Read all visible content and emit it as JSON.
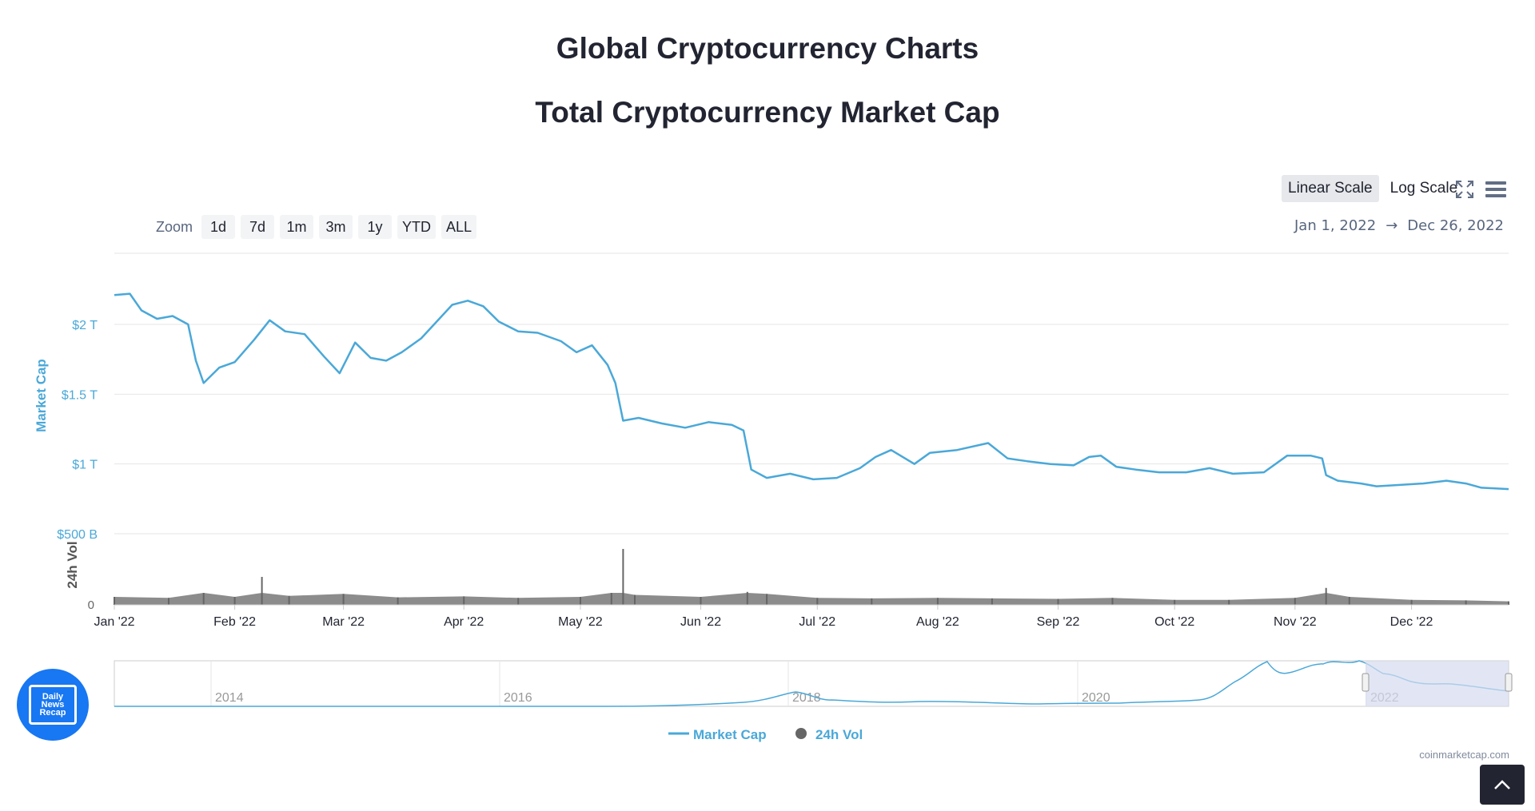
{
  "page": {
    "title": "Global Cryptocurrency Charts",
    "section_title": "Total Cryptocurrency Market Cap",
    "credit": "coinmarketcap.com"
  },
  "controls": {
    "scale_options": [
      "Linear Scale",
      "Log Scale"
    ],
    "active_scale": "Linear Scale",
    "zoom_label": "Zoom",
    "zoom_options": [
      "1d",
      "7d",
      "1m",
      "3m",
      "1y",
      "YTD",
      "ALL"
    ],
    "range_from": "Jan 1, 2022",
    "range_arrow": "→",
    "range_to": "Dec 26, 2022",
    "icons": [
      "fullscreen-icon",
      "menu-icon",
      "chevron-up-icon"
    ]
  },
  "logo": {
    "line1": "Daily",
    "line2": "News",
    "line3": "Recap",
    "color": "#1877f2"
  },
  "colors": {
    "market_cap": "#4aa8d8",
    "volume": "#666666",
    "grid": "#e6e6e6",
    "navigator_mask": "#d6dcef"
  },
  "chart_data": {
    "type": "line",
    "ylabel": "Market Cap",
    "volume_label": "24h Vol",
    "y_ticks": [
      "$2 T",
      "$1.5 T",
      "$1 T",
      "$500 B"
    ],
    "y_tick_values": [
      2000,
      1500,
      1000,
      500
    ],
    "volume_zero_tick": "0",
    "ylim": [
      500,
      2300
    ],
    "x_ticks": [
      "Jan '22",
      "Feb '22",
      "Mar '22",
      "Apr '22",
      "May '22",
      "Jun '22",
      "Jul '22",
      "Aug '22",
      "Sep '22",
      "Oct '22",
      "Nov '22",
      "Dec '22"
    ],
    "x_range": [
      "2022-01-01",
      "2022-12-26"
    ],
    "legend": [
      "Market Cap",
      "24h Vol"
    ],
    "legend_placement": "bottom-center",
    "series": [
      {
        "name": "Market Cap",
        "unit": "USD billions",
        "x": [
          "2022-01-01",
          "2022-01-05",
          "2022-01-08",
          "2022-01-12",
          "2022-01-16",
          "2022-01-20",
          "2022-01-22",
          "2022-01-24",
          "2022-01-28",
          "2022-02-01",
          "2022-02-06",
          "2022-02-10",
          "2022-02-14",
          "2022-02-19",
          "2022-02-24",
          "2022-02-28",
          "2022-03-04",
          "2022-03-08",
          "2022-03-12",
          "2022-03-16",
          "2022-03-21",
          "2022-03-25",
          "2022-03-29",
          "2022-04-02",
          "2022-04-06",
          "2022-04-10",
          "2022-04-15",
          "2022-04-20",
          "2022-04-26",
          "2022-04-30",
          "2022-05-04",
          "2022-05-08",
          "2022-05-10",
          "2022-05-12",
          "2022-05-16",
          "2022-05-22",
          "2022-05-28",
          "2022-06-03",
          "2022-06-09",
          "2022-06-12",
          "2022-06-14",
          "2022-06-18",
          "2022-06-24",
          "2022-06-30",
          "2022-07-06",
          "2022-07-12",
          "2022-07-16",
          "2022-07-20",
          "2022-07-26",
          "2022-07-30",
          "2022-08-06",
          "2022-08-14",
          "2022-08-19",
          "2022-08-24",
          "2022-08-30",
          "2022-09-05",
          "2022-09-09",
          "2022-09-12",
          "2022-09-16",
          "2022-09-21",
          "2022-09-27",
          "2022-10-04",
          "2022-10-10",
          "2022-10-16",
          "2022-10-24",
          "2022-10-30",
          "2022-11-05",
          "2022-11-08",
          "2022-11-09",
          "2022-11-12",
          "2022-11-18",
          "2022-11-22",
          "2022-11-28",
          "2022-12-04",
          "2022-12-10",
          "2022-12-15",
          "2022-12-19",
          "2022-12-26"
        ],
        "values": [
          2210,
          2220,
          2100,
          2040,
          2060,
          2000,
          1740,
          1580,
          1690,
          1730,
          1890,
          2030,
          1950,
          1930,
          1770,
          1650,
          1870,
          1760,
          1740,
          1800,
          1900,
          2020,
          2140,
          2170,
          2130,
          2020,
          1950,
          1940,
          1880,
          1800,
          1850,
          1710,
          1580,
          1310,
          1330,
          1290,
          1260,
          1300,
          1280,
          1240,
          960,
          900,
          930,
          890,
          900,
          970,
          1050,
          1100,
          1000,
          1080,
          1100,
          1150,
          1040,
          1020,
          1000,
          990,
          1050,
          1060,
          980,
          960,
          940,
          940,
          970,
          930,
          940,
          1060,
          1060,
          1040,
          920,
          880,
          860,
          840,
          850,
          860,
          880,
          860,
          830,
          820
        ]
      },
      {
        "name": "24h Vol",
        "unit": "USD billions",
        "x": [
          "2022-01-01",
          "2022-01-15",
          "2022-01-24",
          "2022-02-01",
          "2022-02-08",
          "2022-02-15",
          "2022-03-01",
          "2022-03-15",
          "2022-04-01",
          "2022-04-15",
          "2022-05-01",
          "2022-05-09",
          "2022-05-12",
          "2022-05-15",
          "2022-06-01",
          "2022-06-13",
          "2022-06-18",
          "2022-07-01",
          "2022-07-15",
          "2022-08-01",
          "2022-08-15",
          "2022-09-01",
          "2022-09-15",
          "2022-10-01",
          "2022-10-15",
          "2022-11-01",
          "2022-11-09",
          "2022-11-15",
          "2022-12-01",
          "2022-12-15",
          "2022-12-26"
        ],
        "values": [
          80,
          70,
          120,
          80,
          280,
          90,
          110,
          75,
          85,
          70,
          80,
          120,
          560,
          100,
          80,
          130,
          110,
          70,
          65,
          70,
          65,
          60,
          70,
          50,
          50,
          70,
          170,
          80,
          50,
          45,
          35
        ]
      }
    ],
    "navigator": {
      "x_ticks": [
        "2014",
        "2016",
        "2018",
        "2020",
        "2022"
      ],
      "selected_range": [
        "2022-01-01",
        "2022-12-26"
      ]
    }
  }
}
